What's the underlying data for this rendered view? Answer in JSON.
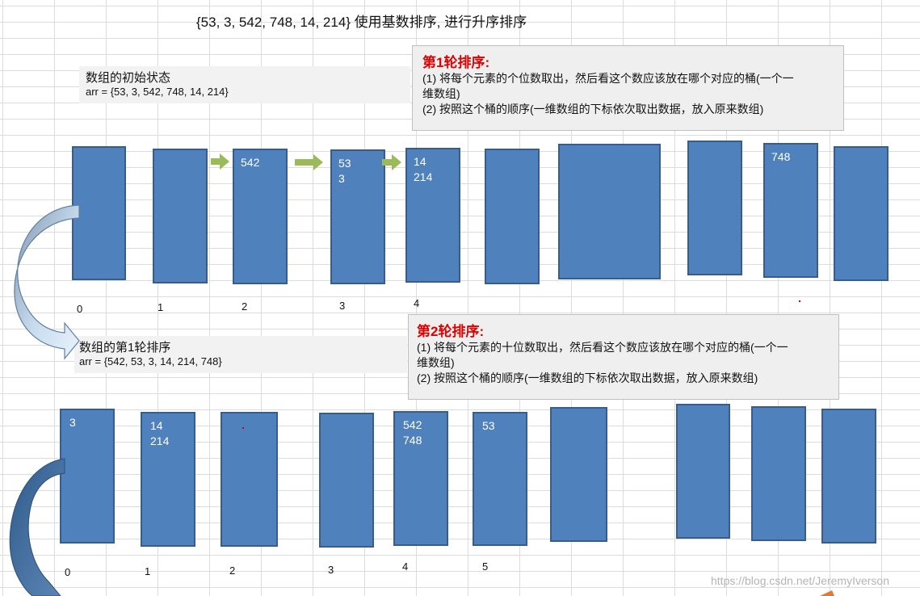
{
  "title": "{53, 3, 542, 748, 14, 214} 使用基数排序, 进行升序排序",
  "initial": {
    "name": "数组的初始状态",
    "arr": "arr = {53, 3, 542, 748, 14, 214}"
  },
  "after1": {
    "name": "数组的第1轮排序",
    "arr": "arr = {542, 53, 3, 14, 214, 748}"
  },
  "round1": {
    "heading": "第1轮排序:",
    "line1": "(1) 将每个元素的个位数取出，然后看这个数应该放在哪个对应的桶(一个一",
    "line1b": "维数组)",
    "line2": "(2) 按照这个桶的顺序(一维数组的下标依次取出数据，放入原来数组)"
  },
  "round2": {
    "heading": "第2轮排序:",
    "line1": "(1) 将每个元素的十位数取出，然后看这个数应该放在哪个对应的桶(一个一",
    "line1b": "维数组)",
    "line2": "(2) 按照这个桶的顺序(一维数组的下标依次取出数据，放入原来数组)"
  },
  "buckets_round1": [
    {
      "index": "0",
      "items": []
    },
    {
      "index": "1",
      "items": []
    },
    {
      "index": "2",
      "items": [
        "542"
      ]
    },
    {
      "index": "3",
      "items": [
        "53",
        "3"
      ]
    },
    {
      "index": "4",
      "items": [
        "14",
        "214"
      ]
    },
    {
      "index": "",
      "items": []
    },
    {
      "index": "",
      "items": []
    },
    {
      "index": "",
      "items": []
    },
    {
      "index": "",
      "items": [
        "748"
      ]
    },
    {
      "index": "",
      "items": []
    }
  ],
  "buckets_round2": [
    {
      "index": "0",
      "items": [
        "3"
      ]
    },
    {
      "index": "1",
      "items": [
        "14",
        "214"
      ]
    },
    {
      "index": "2",
      "items": []
    },
    {
      "index": "3",
      "items": []
    },
    {
      "index": "4",
      "items": [
        "542",
        "748"
      ]
    },
    {
      "index": "5",
      "items": [
        "53"
      ]
    },
    {
      "index": "",
      "items": []
    },
    {
      "index": "",
      "items": []
    },
    {
      "index": "",
      "items": []
    },
    {
      "index": "",
      "items": []
    }
  ],
  "watermark": "https://blog.csdn.net/JeremyIverson",
  "colors": {
    "bucket_fill": "#4f81bd",
    "bucket_border": "#385d8a",
    "heading": "#e00000",
    "arrow_green": "#9bbb59"
  }
}
